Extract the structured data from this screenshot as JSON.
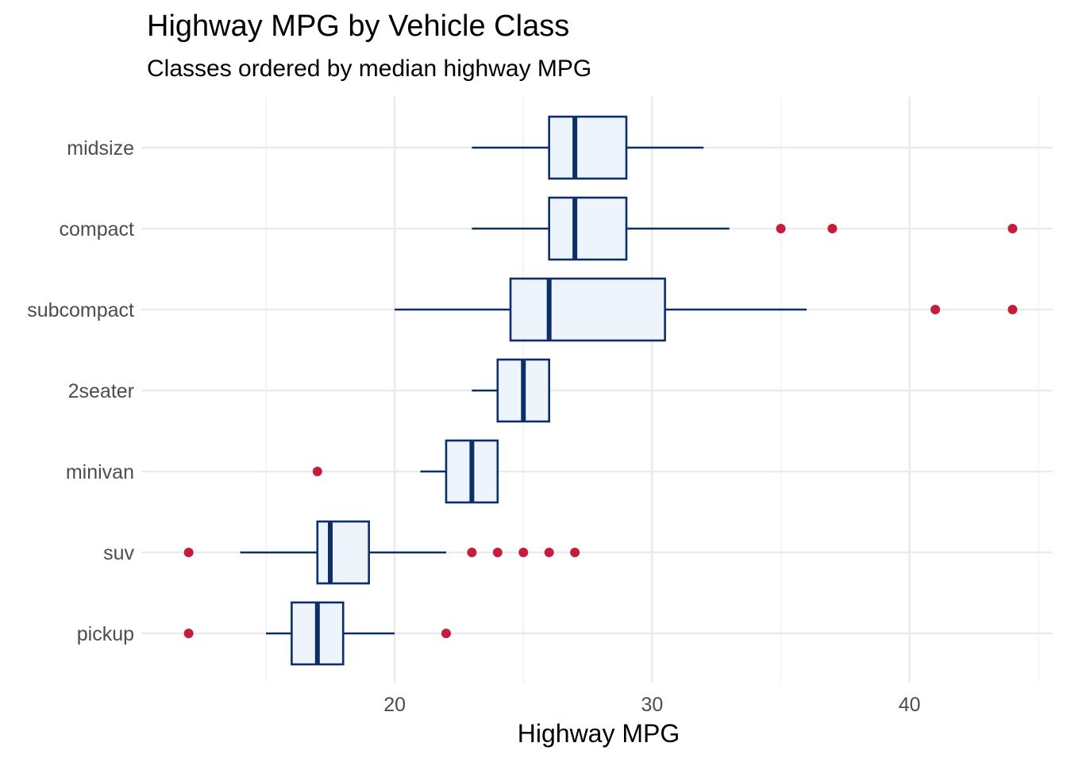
{
  "chart_data": {
    "type": "boxplot",
    "orientation": "horizontal",
    "title": "Highway MPG by Vehicle Class",
    "subtitle": "Classes ordered by median highway MPG",
    "xlabel": "Highway MPG",
    "ylabel": "",
    "xlim": [
      10.5,
      45.5
    ],
    "x_ticks": [
      20,
      30,
      40
    ],
    "grid": true,
    "colors": {
      "box_fill": "#eef4fc",
      "box_stroke": "#0b2f66",
      "outlier": "#c41e3a",
      "grid": "#ebebeb"
    },
    "categories": [
      "midsize",
      "compact",
      "subcompact",
      "2seater",
      "minivan",
      "suv",
      "pickup"
    ],
    "boxes": [
      {
        "name": "midsize",
        "whisker_low": 23,
        "q1": 26,
        "median": 27,
        "q3": 29,
        "whisker_high": 32,
        "outliers": []
      },
      {
        "name": "compact",
        "whisker_low": 23,
        "q1": 26,
        "median": 27,
        "q3": 29,
        "whisker_high": 33,
        "outliers": [
          35,
          37,
          44
        ]
      },
      {
        "name": "subcompact",
        "whisker_low": 20,
        "q1": 24.5,
        "median": 26,
        "q3": 30.5,
        "whisker_high": 36,
        "outliers": [
          41,
          44
        ]
      },
      {
        "name": "2seater",
        "whisker_low": 23,
        "q1": 24,
        "median": 25,
        "q3": 26,
        "whisker_high": 26,
        "outliers": []
      },
      {
        "name": "minivan",
        "whisker_low": 21,
        "q1": 22,
        "median": 23,
        "q3": 24,
        "whisker_high": 24,
        "outliers": [
          17
        ]
      },
      {
        "name": "suv",
        "whisker_low": 14,
        "q1": 17,
        "median": 17.5,
        "q3": 19,
        "whisker_high": 22,
        "outliers": [
          12,
          23,
          24,
          25,
          26,
          27
        ]
      },
      {
        "name": "pickup",
        "whisker_low": 15,
        "q1": 16,
        "median": 17,
        "q3": 18,
        "whisker_high": 20,
        "outliers": [
          12,
          22
        ]
      }
    ]
  }
}
